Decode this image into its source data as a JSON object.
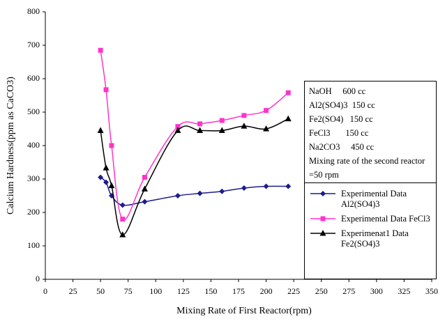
{
  "chart_data": {
    "type": "line",
    "x_label": "Mixing Rate of First Reactor(rpm)",
    "y_label": "Calcium Hardness(ppm as CaCO3)",
    "x": [
      50,
      55,
      60,
      70,
      90,
      120,
      140,
      160,
      180,
      200,
      220
    ],
    "series": [
      {
        "name": "Experimental Data Al2(SO4)3",
        "color": "#1c1c8c",
        "marker": "diamond",
        "values": [
          305,
          290,
          250,
          222,
          232,
          250,
          257,
          263,
          273,
          278,
          278
        ]
      },
      {
        "name": "Experimental Data FeCl3",
        "color": "#ff33cc",
        "marker": "square",
        "values": [
          685,
          567,
          400,
          180,
          305,
          457,
          465,
          475,
          490,
          505,
          558
        ]
      },
      {
        "name": "Experimenat1 Data Fe2(SO4)3",
        "color": "#000000",
        "marker": "triangle",
        "values": [
          445,
          333,
          280,
          133,
          270,
          445,
          445,
          445,
          458,
          450,
          480
        ]
      }
    ],
    "xlim": [
      0,
      350
    ],
    "xticks": [
      0,
      25,
      50,
      75,
      100,
      125,
      150,
      175,
      200,
      225,
      250,
      275,
      300,
      325,
      350
    ],
    "ylim": [
      0,
      800
    ],
    "yticks": [
      0,
      100,
      200,
      300,
      400,
      500,
      600,
      700,
      800
    ],
    "grid": false,
    "annotations": [
      "NaOH     600 cc",
      "Al2(SO4)3  150 cc",
      "Fe2(SO4)   150 cc",
      "FeCl3       150 cc",
      "Na2CO3     450 cc",
      "Mixing rate of the second reactor =50 rpm"
    ]
  }
}
